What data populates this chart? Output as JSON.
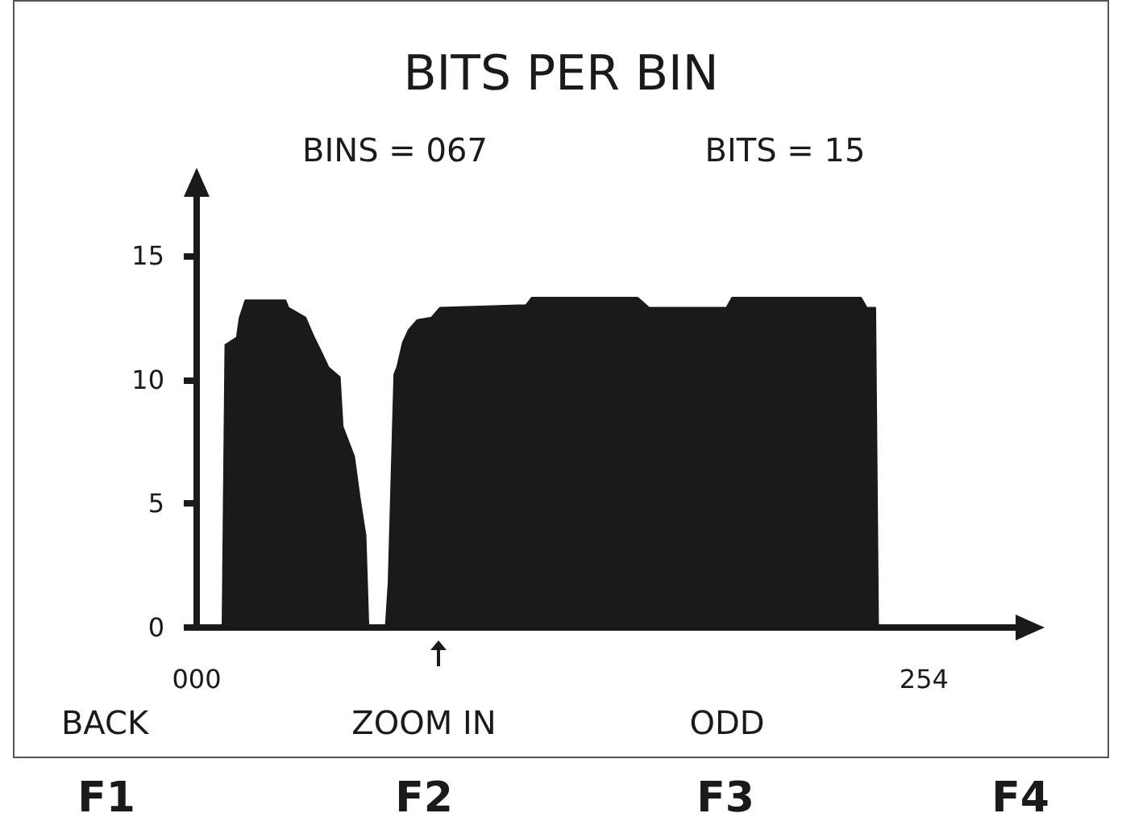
{
  "chart_data": {
    "type": "area",
    "title": "BITS PER BIN",
    "annotations": [
      "BINS = 067",
      "BITS = 15",
      "BACK",
      "ZOOM IN",
      "ODD",
      "F1",
      "F2",
      "F3",
      "F4"
    ],
    "x": [
      0,
      9,
      10,
      14,
      15,
      17,
      31,
      32,
      38,
      41,
      44,
      46,
      50,
      51,
      53,
      55,
      57,
      59,
      60,
      66,
      67,
      68,
      69,
      70,
      72,
      74,
      77,
      82,
      85,
      115,
      117,
      154,
      158,
      185,
      187,
      232,
      234,
      237,
      238,
      254
    ],
    "values": [
      0,
      0,
      11.4,
      11.7,
      12.5,
      13.2,
      13.2,
      12.9,
      12.5,
      11.7,
      11.0,
      10.5,
      10.1,
      8.1,
      7.5,
      6.9,
      5.2,
      3.7,
      0,
      0,
      1.8,
      6.0,
      10.2,
      10.5,
      11.5,
      12.0,
      12.4,
      12.5,
      12.9,
      13.0,
      13.3,
      13.3,
      12.9,
      12.9,
      13.3,
      13.3,
      12.9,
      12.9,
      0,
      0
    ],
    "color": "#1a1a1a",
    "xlim": [
      0,
      286
    ],
    "xticks": [
      {
        "value": 0,
        "label": "000"
      },
      {
        "value": 254,
        "label": "254"
      }
    ],
    "ylim": [
      0,
      17.5
    ],
    "yticks": [
      0,
      5,
      10,
      15
    ],
    "marker": "none"
  }
}
